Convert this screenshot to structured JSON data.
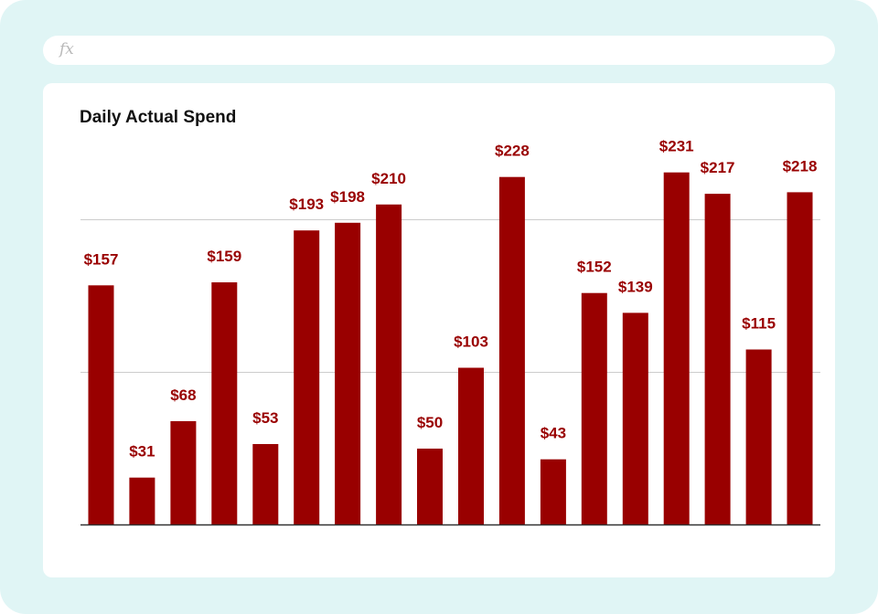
{
  "formula_bar": {
    "icon": "function-icon",
    "label": "fx",
    "value": ""
  },
  "colors": {
    "background": "#e0f5f5",
    "bar": "#990000",
    "bar_label": "#990000",
    "gridline": "#cccccc",
    "axis": "#333333"
  },
  "chart_data": {
    "type": "bar",
    "title": "Daily Actual Spend",
    "xlabel": "",
    "ylabel": "",
    "values": [
      157,
      31,
      68,
      159,
      53,
      193,
      198,
      210,
      50,
      103,
      228,
      43,
      152,
      139,
      231,
      217,
      115,
      218
    ],
    "data_labels": [
      "$157",
      "$31",
      "$68",
      "$159",
      "$53",
      "$193",
      "$198",
      "$210",
      "$50",
      "$103",
      "$228",
      "$43",
      "$152",
      "$139",
      "$231",
      "$217",
      "$115",
      "$218"
    ],
    "ylim": [
      0,
      250
    ],
    "gridlines": [
      100,
      200
    ],
    "grid": true,
    "legend": "none"
  }
}
